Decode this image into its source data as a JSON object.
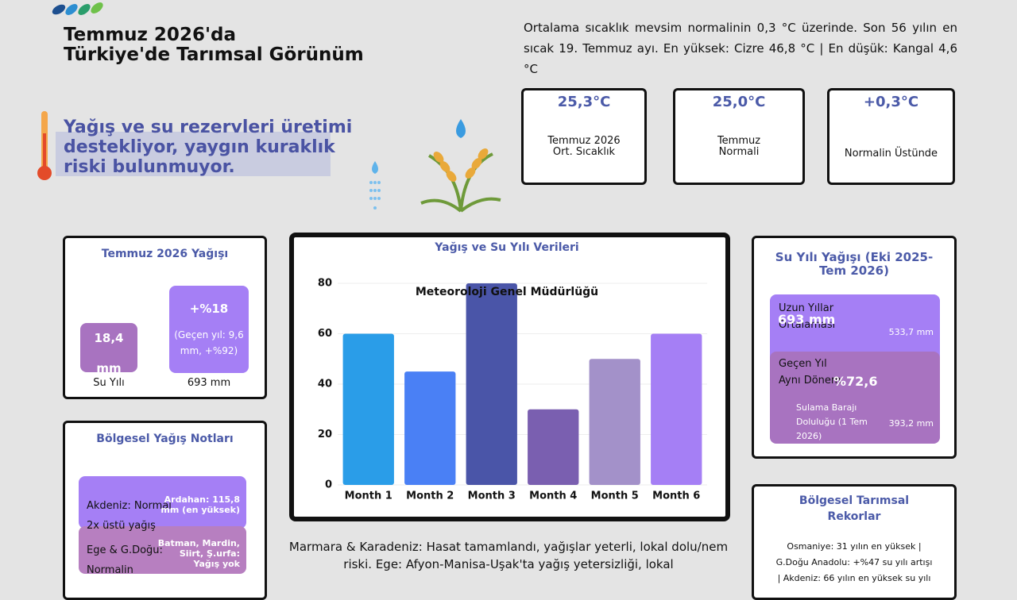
{
  "header": {
    "title_line1": "Temmuz 2026'da",
    "title_line2": "Türkiye'de Tarımsal Görünüm"
  },
  "summary": "Ortalama sıcaklık mevsim normalinin 0,3 °C üzerinde. Son 56 yılın en sıcak 19. Temmuz ayı. En yüksek: Cizre 46,8 °C | En düşük: Kangal 4,6 °C",
  "headline": "Yağış ve su rezervleri üretimi destekliyor, yaygın kuraklık riski bulunmuyor.",
  "stats": [
    {
      "value": "25,3°C",
      "label": "Temmuz 2026 Ort. Sıcaklık"
    },
    {
      "value": "25,0°C",
      "label": "Temmuz Normali"
    },
    {
      "value": "+0,3°C",
      "label": "Normalin Üstünde"
    }
  ],
  "rain_card": {
    "title": "Temmuz 2026 Yağışı",
    "left_value": "18,4 mm",
    "left_label": "Su Yılı",
    "right_value": "+%18",
    "right_note": "(Geçen yıl: 9,6 mm, +%92)",
    "right_label": "693 mm"
  },
  "region_notes": {
    "title": "Bölgesel Yağış Notları",
    "items": [
      {
        "text": "Akdeniz: Normal 2x üstü yağış",
        "note": "Ardahan: 115,8 mm (en yüksek)"
      },
      {
        "text": "Ege & G.Doğu: Normalin",
        "note": "Batman, Mardin, Siirt, Ş.urfa: Yağış yok"
      }
    ]
  },
  "chart_data": {
    "type": "bar",
    "title": "Yağış ve Su Yılı Verileri",
    "annotation": "Meteoroloji Genel Müdürlüğü",
    "categories": [
      "Month 1",
      "Month 2",
      "Month 3",
      "Month 4",
      "Month 5",
      "Month 6"
    ],
    "values": [
      60,
      45,
      80,
      30,
      50,
      60
    ],
    "colors": [
      "#2a9de8",
      "#4a80f5",
      "#4a55a8",
      "#7a5fb0",
      "#a391c9",
      "#a57ff5"
    ],
    "ylim": [
      0,
      80
    ],
    "yticks": [
      0,
      20,
      40,
      60,
      80
    ],
    "grid": true
  },
  "bottom_text": "Marmara & Karadeniz: Hasat tamamlandı, yağışlar yeterli, lokal dolu/nem riski. Ege: Afyon-Manisa-Uşak'ta yağış yetersizliği, lokal",
  "water_year": {
    "title": "Su Yılı Yağışı (Eki 2025-Tem 2026)",
    "box1_label": "Uzun Yıllar Ortalaması",
    "box1_value": "693 mm",
    "box1_note": "533,7 mm",
    "box2_label": "Geçen Yıl Aynı Dönem",
    "box2_value": "%72,6",
    "box2_note": "Sulama Barajı Doluluğu (1 Tem 2026)",
    "box2_note_value": "393,2 mm"
  },
  "records": {
    "title": "Bölgesel Tarımsal Rekorlar",
    "text": "Osmaniye: 31 yılın en yüksek | G.Doğu Anadolu: +%47 su yılı artışı | Akdeniz: 66 yılın en yüksek su yılı"
  }
}
